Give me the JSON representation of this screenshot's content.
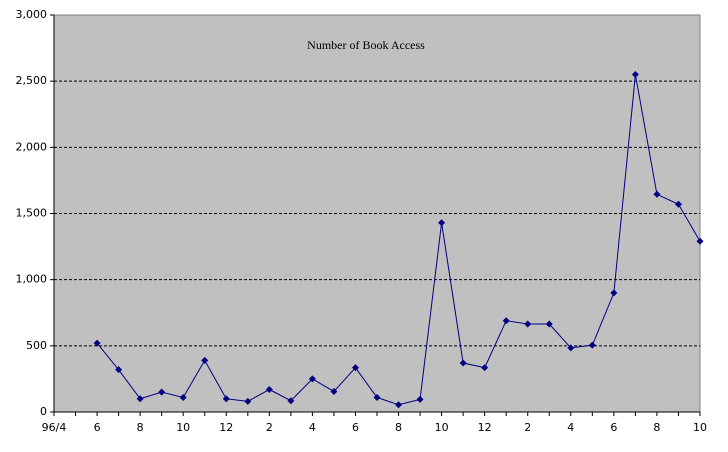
{
  "chart_data": {
    "type": "line",
    "title": "Number of Book Access",
    "categories": [
      "96/4",
      null,
      "6",
      null,
      "8",
      null,
      "10",
      null,
      "12",
      null,
      "2",
      null,
      "4",
      null,
      "6",
      null,
      "8",
      null,
      "10",
      null,
      "12",
      null,
      "2",
      null,
      "4",
      null,
      "6",
      null,
      "8",
      null,
      "10"
    ],
    "series": [
      {
        "name": null,
        "color": "#000080",
        "values": [
          null,
          null,
          520,
          320,
          100,
          150,
          110,
          390,
          100,
          80,
          170,
          85,
          250,
          155,
          335,
          110,
          55,
          95,
          1430,
          370,
          335,
          690,
          665,
          665,
          485,
          505,
          900,
          2550,
          1645,
          1570,
          1290
        ]
      }
    ],
    "ylim": [
      0,
      3000
    ],
    "yticks": [
      0,
      500,
      {
        "value": 1000,
        "label": "1,000"
      },
      {
        "value": 1500,
        "label": "1,500"
      },
      {
        "value": 2000,
        "label": "2,000"
      },
      {
        "value": 2500,
        "label": "2,500"
      },
      {
        "value": 3000,
        "label": "3,000"
      }
    ],
    "grid": true
  }
}
